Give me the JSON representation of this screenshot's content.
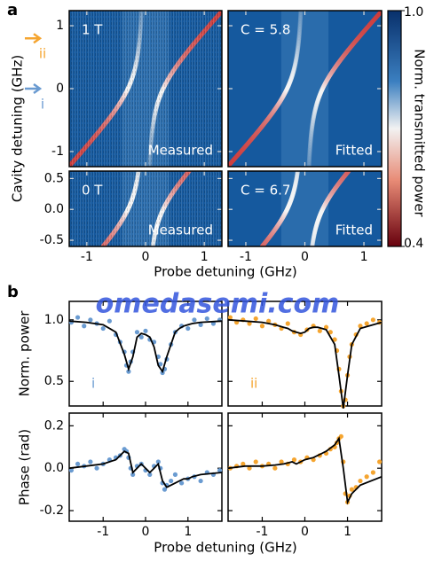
{
  "figure": {
    "panel_labels": [
      "a",
      "b"
    ],
    "watermark": "omedasemi.com"
  },
  "chart_data": [
    {
      "type": "heatmap",
      "label_tl": "1 T",
      "label_br": "Measured",
      "xlim": [
        -1.3,
        1.3
      ],
      "ylim": [
        -1.24,
        1.24
      ],
      "xticks": [
        -1,
        0,
        1
      ],
      "yticks": [
        -1,
        0,
        1
      ],
      "ylabel": "Cavity detuning (GHz)",
      "annotations": [
        {
          "text": "ii",
          "y": 0.8,
          "color": "#f5a530"
        },
        {
          "text": "i",
          "y": 0,
          "color": "#6a9bd1"
        }
      ]
    },
    {
      "type": "heatmap",
      "label_tl": "C = 5.8",
      "label_br": "Fitted",
      "xlim": [
        -1.3,
        1.3
      ],
      "ylim": [
        -1.24,
        1.24
      ],
      "xticks": [
        -1,
        0,
        1
      ],
      "yticks": [
        -1,
        0,
        1
      ]
    },
    {
      "type": "heatmap",
      "label_tl": "0 T",
      "label_br": "Measured",
      "xlim": [
        -1.3,
        1.3
      ],
      "ylim": [
        -0.6,
        0.62
      ],
      "xticks": [
        -1,
        0,
        1
      ],
      "yticks": [
        -0.5,
        {
          "value": 0,
          "label": "0.0"
        },
        0.5
      ],
      "xlabel": "Probe detuning (GHz)"
    },
    {
      "type": "heatmap",
      "label_tl": "C = 6.7",
      "label_br": "Fitted",
      "xlim": [
        -1.3,
        1.3
      ],
      "ylim": [
        -0.6,
        0.62
      ],
      "xticks": [
        -1,
        0,
        1
      ],
      "yticks": [
        -0.5,
        {
          "value": 0,
          "label": "0.0"
        },
        0.5
      ]
    },
    {
      "type": "colorbar",
      "label": "Norm. transmitted power",
      "ylim": [
        0.4,
        1.0
      ],
      "yticks": [
        {
          "value": 1.0,
          "label": "1.0"
        },
        {
          "value": 0.4,
          "label": "0.4"
        }
      ]
    },
    {
      "type": "line",
      "annotation": "i",
      "annotation_color": "#6a9bd1",
      "ylabel": "Norm. power",
      "xlim": [
        -1.8,
        1.8
      ],
      "ylim": [
        0.3,
        1.15
      ],
      "xticks": [
        -1,
        0,
        1
      ],
      "yticks": [
        {
          "value": 1.0,
          "label": "1.0"
        },
        0.5
      ],
      "x": [
        -1.8,
        -1.4,
        -1.0,
        -0.7,
        -0.5,
        -0.4,
        -0.3,
        -0.2,
        -0.1,
        0,
        0.1,
        0.2,
        0.3,
        0.4,
        0.5,
        0.7,
        0.8,
        0.9,
        1.0,
        1.1,
        1.3,
        1.8
      ],
      "series": [
        {
          "mode": "markers",
          "color": "#6a9bd1",
          "x": [
            -1.75,
            -1.6,
            -1.45,
            -1.3,
            -1.15,
            -1.0,
            -0.85,
            -0.7,
            -0.6,
            -0.5,
            -0.45,
            -0.4,
            -0.35,
            -0.3,
            -0.2,
            -0.1,
            0,
            0.1,
            0.2,
            0.3,
            0.35,
            0.4,
            0.45,
            0.5,
            0.6,
            0.7,
            0.85,
            1.0,
            1.15,
            1.3,
            1.45,
            1.6,
            1.75
          ],
          "values": [
            0.98,
            1.02,
            0.95,
            1.0,
            0.97,
            0.93,
            0.99,
            0.88,
            0.82,
            0.74,
            0.63,
            0.58,
            0.66,
            0.74,
            0.9,
            0.86,
            0.91,
            0.84,
            0.82,
            0.7,
            0.64,
            0.57,
            0.6,
            0.68,
            0.8,
            0.9,
            0.95,
            0.93,
            1.0,
            0.96,
            1.01,
            0.97,
            1.0
          ]
        },
        {
          "mode": "line",
          "color": "#000000",
          "values": [
            0.99,
            0.98,
            0.96,
            0.9,
            0.72,
            0.6,
            0.7,
            0.86,
            0.89,
            0.88,
            0.86,
            0.78,
            0.63,
            0.58,
            0.7,
            0.9,
            0.93,
            0.95,
            0.96,
            0.97,
            0.98,
            0.99
          ]
        }
      ]
    },
    {
      "type": "line",
      "annotation": "ii",
      "annotation_color": "#f5a530",
      "xlim": [
        -1.8,
        1.8
      ],
      "ylim": [
        0.3,
        1.15
      ],
      "xticks": [
        -1,
        0,
        1
      ],
      "yticks": [
        {
          "value": 1.0,
          "label": "1.0"
        },
        0.5
      ],
      "x": [
        -1.8,
        -1.4,
        -1.0,
        -0.7,
        -0.5,
        -0.4,
        -0.3,
        -0.2,
        -0.1,
        0,
        0.1,
        0.2,
        0.3,
        0.4,
        0.5,
        0.7,
        0.8,
        0.9,
        1.0,
        1.1,
        1.3,
        1.8
      ],
      "series": [
        {
          "mode": "markers",
          "color": "#f5a530",
          "x": [
            -1.75,
            -1.6,
            -1.45,
            -1.3,
            -1.15,
            -1.0,
            -0.85,
            -0.7,
            -0.55,
            -0.4,
            -0.25,
            -0.1,
            0.05,
            0.2,
            0.35,
            0.5,
            0.6,
            0.7,
            0.75,
            0.8,
            0.85,
            0.9,
            0.95,
            1.0,
            1.05,
            1.1,
            1.2,
            1.3,
            1.45,
            1.6,
            1.75
          ],
          "values": [
            1.02,
            0.98,
            1.0,
            0.97,
            1.01,
            0.95,
            0.99,
            0.96,
            0.93,
            0.97,
            0.9,
            0.88,
            0.92,
            0.95,
            0.91,
            0.94,
            0.9,
            0.84,
            0.75,
            0.6,
            0.42,
            0.3,
            0.35,
            0.55,
            0.7,
            0.8,
            0.88,
            0.95,
            0.97,
            1.0,
            0.98
          ]
        },
        {
          "mode": "line",
          "color": "#000000",
          "values": [
            1.0,
            0.99,
            0.98,
            0.96,
            0.94,
            0.93,
            0.91,
            0.9,
            0.89,
            0.9,
            0.93,
            0.94,
            0.94,
            0.93,
            0.92,
            0.8,
            0.55,
            0.28,
            0.55,
            0.8,
            0.93,
            0.98
          ]
        }
      ]
    },
    {
      "type": "line",
      "ylabel": "Phase (rad)",
      "xlabel": "Probe detuning (GHz)",
      "xlim": [
        -1.8,
        1.8
      ],
      "ylim": [
        -0.25,
        0.26
      ],
      "xticks": [
        -1,
        0,
        1
      ],
      "yticks": [
        0.2,
        {
          "value": 0,
          "label": "0.0"
        },
        -0.2
      ],
      "x": [
        -1.8,
        -1.4,
        -1.0,
        -0.7,
        -0.5,
        -0.4,
        -0.3,
        -0.2,
        -0.1,
        0,
        0.1,
        0.2,
        0.3,
        0.4,
        0.5,
        0.7,
        0.8,
        0.9,
        1.0,
        1.1,
        1.3,
        1.8
      ],
      "series": [
        {
          "mode": "markers",
          "color": "#6a9bd1",
          "x": [
            -1.75,
            -1.6,
            -1.45,
            -1.3,
            -1.15,
            -1.0,
            -0.85,
            -0.7,
            -0.6,
            -0.5,
            -0.45,
            -0.4,
            -0.35,
            -0.3,
            -0.2,
            -0.1,
            0,
            0.1,
            0.2,
            0.3,
            0.35,
            0.4,
            0.45,
            0.5,
            0.6,
            0.7,
            0.85,
            1.0,
            1.15,
            1.3,
            1.45,
            1.6,
            1.75
          ],
          "values": [
            -0.01,
            0.02,
            0.01,
            0.03,
            0.0,
            0.02,
            0.04,
            0.05,
            0.06,
            0.09,
            0.08,
            0.05,
            0.0,
            -0.03,
            0.01,
            0.02,
            -0.01,
            -0.03,
            0.01,
            0.03,
            0.0,
            -0.07,
            -0.1,
            -0.08,
            -0.06,
            -0.03,
            -0.07,
            -0.05,
            -0.04,
            -0.06,
            -0.02,
            -0.03,
            -0.01
          ]
        },
        {
          "mode": "line",
          "color": "#000000",
          "values": [
            0.0,
            0.01,
            0.02,
            0.04,
            0.08,
            0.07,
            -0.02,
            0.0,
            0.02,
            0.0,
            -0.02,
            0.0,
            0.02,
            -0.06,
            -0.09,
            -0.07,
            -0.06,
            -0.05,
            -0.05,
            -0.04,
            -0.03,
            -0.02
          ]
        }
      ]
    },
    {
      "type": "line",
      "xlim": [
        -1.8,
        1.8
      ],
      "ylim": [
        -0.25,
        0.26
      ],
      "xticks": [
        -1,
        0,
        1
      ],
      "yticks": [
        0.2,
        {
          "value": 0,
          "label": "0.0"
        },
        -0.2
      ],
      "x": [
        -1.8,
        -1.4,
        -1.0,
        -0.7,
        -0.5,
        -0.4,
        -0.3,
        -0.2,
        -0.1,
        0,
        0.1,
        0.2,
        0.3,
        0.4,
        0.5,
        0.7,
        0.8,
        0.9,
        1.0,
        1.1,
        1.3,
        1.8
      ],
      "series": [
        {
          "mode": "markers",
          "color": "#f5a530",
          "x": [
            -1.75,
            -1.6,
            -1.45,
            -1.3,
            -1.15,
            -1.0,
            -0.85,
            -0.7,
            -0.55,
            -0.4,
            -0.25,
            -0.1,
            0.05,
            0.2,
            0.35,
            0.5,
            0.6,
            0.7,
            0.75,
            0.8,
            0.85,
            0.9,
            0.95,
            1.0,
            1.05,
            1.1,
            1.2,
            1.3,
            1.45,
            1.6,
            1.75
          ],
          "values": [
            0.0,
            0.01,
            0.02,
            0.0,
            0.03,
            0.01,
            0.02,
            0.0,
            0.03,
            0.02,
            0.04,
            0.03,
            0.05,
            0.04,
            0.06,
            0.07,
            0.09,
            0.1,
            0.12,
            0.14,
            0.15,
            0.03,
            -0.12,
            -0.16,
            -0.13,
            -0.1,
            -0.09,
            -0.06,
            -0.04,
            -0.02,
            0.03
          ]
        },
        {
          "mode": "line",
          "color": "#000000",
          "values": [
            0.0,
            0.01,
            0.01,
            0.015,
            0.02,
            0.025,
            0.03,
            0.02,
            0.03,
            0.04,
            0.045,
            0.05,
            0.06,
            0.07,
            0.08,
            0.11,
            0.14,
            0.0,
            -0.16,
            -0.12,
            -0.08,
            -0.04
          ]
        }
      ]
    }
  ]
}
